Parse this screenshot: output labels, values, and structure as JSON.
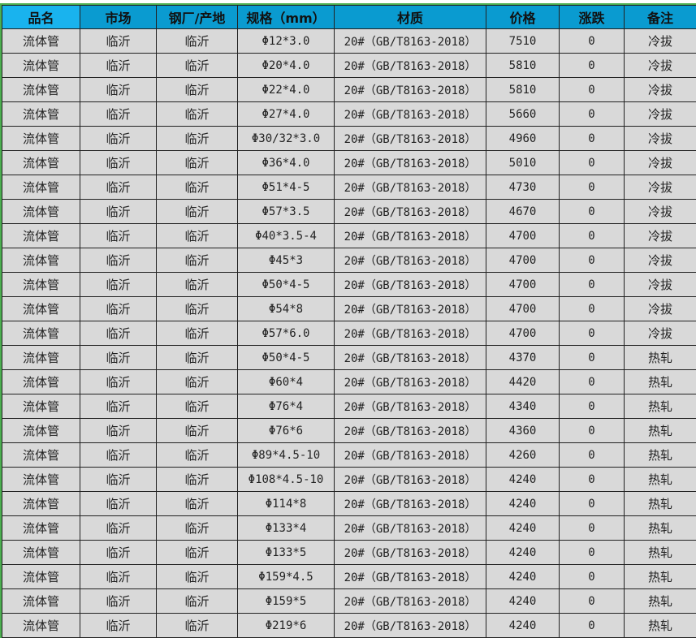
{
  "headers": [
    "品名",
    "市场",
    "钢厂/产地",
    "规格（mm）",
    "材质",
    "价格",
    "涨跌",
    "备注"
  ],
  "rows": [
    [
      "流体管",
      "临沂",
      "临沂",
      "Φ12*3.0",
      "20#（GB/T8163-2018）",
      "7510",
      "0",
      "冷拔"
    ],
    [
      "流体管",
      "临沂",
      "临沂",
      "Φ20*4.0",
      "20#（GB/T8163-2018）",
      "5810",
      "0",
      "冷拔"
    ],
    [
      "流体管",
      "临沂",
      "临沂",
      "Φ22*4.0",
      "20#（GB/T8163-2018）",
      "5810",
      "0",
      "冷拔"
    ],
    [
      "流体管",
      "临沂",
      "临沂",
      "Φ27*4.0",
      "20#（GB/T8163-2018）",
      "5660",
      "0",
      "冷拔"
    ],
    [
      "流体管",
      "临沂",
      "临沂",
      "Φ30/32*3.0",
      "20#（GB/T8163-2018）",
      "4960",
      "0",
      "冷拔"
    ],
    [
      "流体管",
      "临沂",
      "临沂",
      "Φ36*4.0",
      "20#（GB/T8163-2018）",
      "5010",
      "0",
      "冷拔"
    ],
    [
      "流体管",
      "临沂",
      "临沂",
      "Φ51*4-5",
      "20#（GB/T8163-2018）",
      "4730",
      "0",
      "冷拔"
    ],
    [
      "流体管",
      "临沂",
      "临沂",
      "Φ57*3.5",
      "20#（GB/T8163-2018）",
      "4670",
      "0",
      "冷拔"
    ],
    [
      "流体管",
      "临沂",
      "临沂",
      "Φ40*3.5-4",
      "20#（GB/T8163-2018）",
      "4700",
      "0",
      "冷拔"
    ],
    [
      "流体管",
      "临沂",
      "临沂",
      "Φ45*3",
      "20#（GB/T8163-2018）",
      "4700",
      "0",
      "冷拔"
    ],
    [
      "流体管",
      "临沂",
      "临沂",
      "Φ50*4-5",
      "20#（GB/T8163-2018）",
      "4700",
      "0",
      "冷拔"
    ],
    [
      "流体管",
      "临沂",
      "临沂",
      "Φ54*8",
      "20#（GB/T8163-2018）",
      "4700",
      "0",
      "冷拔"
    ],
    [
      "流体管",
      "临沂",
      "临沂",
      "Φ57*6.0",
      "20#（GB/T8163-2018）",
      "4700",
      "0",
      "冷拔"
    ],
    [
      "流体管",
      "临沂",
      "临沂",
      "Φ50*4-5",
      "20#（GB/T8163-2018）",
      "4370",
      "0",
      "热轧"
    ],
    [
      "流体管",
      "临沂",
      "临沂",
      "Φ60*4",
      "20#（GB/T8163-2018）",
      "4420",
      "0",
      "热轧"
    ],
    [
      "流体管",
      "临沂",
      "临沂",
      "Φ76*4",
      "20#（GB/T8163-2018）",
      "4340",
      "0",
      "热轧"
    ],
    [
      "流体管",
      "临沂",
      "临沂",
      "Φ76*6",
      "20#（GB/T8163-2018）",
      "4360",
      "0",
      "热轧"
    ],
    [
      "流体管",
      "临沂",
      "临沂",
      "Φ89*4.5-10",
      "20#（GB/T8163-2018）",
      "4260",
      "0",
      "热轧"
    ],
    [
      "流体管",
      "临沂",
      "临沂",
      "Φ108*4.5-10",
      "20#（GB/T8163-2018）",
      "4240",
      "0",
      "热轧"
    ],
    [
      "流体管",
      "临沂",
      "临沂",
      "Φ114*8",
      "20#（GB/T8163-2018）",
      "4240",
      "0",
      "热轧"
    ],
    [
      "流体管",
      "临沂",
      "临沂",
      "Φ133*4",
      "20#（GB/T8163-2018）",
      "4240",
      "0",
      "热轧"
    ],
    [
      "流体管",
      "临沂",
      "临沂",
      "Φ133*5",
      "20#（GB/T8163-2018）",
      "4240",
      "0",
      "热轧"
    ],
    [
      "流体管",
      "临沂",
      "临沂",
      "Φ159*4.5",
      "20#（GB/T8163-2018）",
      "4240",
      "0",
      "热轧"
    ],
    [
      "流体管",
      "临沂",
      "临沂",
      "Φ159*5",
      "20#（GB/T8163-2018）",
      "4240",
      "0",
      "热轧"
    ],
    [
      "流体管",
      "临沂",
      "临沂",
      "Φ219*6",
      "20#（GB/T8163-2018）",
      "4240",
      "0",
      "热轧"
    ]
  ]
}
